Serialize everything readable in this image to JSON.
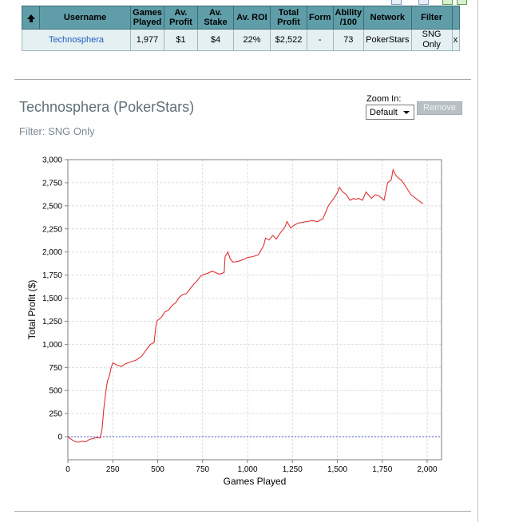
{
  "table": {
    "headers": [
      "",
      "Username",
      "Games Played",
      "Av. Profit",
      "Av. Stake",
      "Av. ROI",
      "Total Profit",
      "Form",
      "Ability /100",
      "Network",
      "Filter",
      ""
    ],
    "row": {
      "username": "Technosphera",
      "games_played": "1,977",
      "av_profit": "$1",
      "av_stake": "$4",
      "av_roi": "22%",
      "total_profit": "$2,522",
      "form": "-",
      "ability": "73",
      "network": "PokerStars",
      "filter": "SNG Only",
      "close": "x"
    }
  },
  "title": "Technosphera (PokerStars)",
  "filter_text": "Filter: SNG Only",
  "zoom": {
    "label": "Zoom In:",
    "selected": "Default"
  },
  "remove_label": "Remove",
  "colors": {
    "header_bg": "#5f9ea8",
    "row_bg": "#e4f0f2",
    "line": "#e03030",
    "zero_line": "#4a5ad0"
  },
  "chart_data": {
    "type": "line",
    "xlabel": "Games Played",
    "ylabel": "Total Profit ($)",
    "xlim": [
      0,
      2080
    ],
    "ylim": [
      -250,
      3000
    ],
    "xticks": [
      0,
      250,
      500,
      750,
      1000,
      1250,
      1500,
      1750,
      2000
    ],
    "yticks": [
      0,
      250,
      500,
      750,
      1000,
      1250,
      1500,
      1750,
      2000,
      2250,
      2500,
      2750,
      3000
    ],
    "xtick_labels": [
      "0",
      "250",
      "500",
      "750",
      "1,000",
      "1,250",
      "1,500",
      "1,750",
      "2,000"
    ],
    "ytick_labels": [
      "0",
      "250",
      "500",
      "750",
      "1,000",
      "1,250",
      "1,500",
      "1,750",
      "2,000",
      "2,250",
      "2,500",
      "2,750",
      "3,000"
    ],
    "grid": true,
    "reference_line": 0,
    "series": [
      {
        "x": [
          0,
          20,
          40,
          60,
          80,
          100,
          120,
          140,
          160,
          180,
          190,
          200,
          210,
          220,
          230,
          240,
          250,
          260,
          280,
          300,
          320,
          350,
          380,
          410,
          440,
          460,
          480,
          490,
          495,
          500,
          520,
          540,
          560,
          580,
          600,
          620,
          640,
          660,
          680,
          700,
          720,
          740,
          760,
          780,
          800,
          820,
          840,
          860,
          870,
          875,
          890,
          905,
          920,
          950,
          980,
          1000,
          1030,
          1060,
          1090,
          1100,
          1120,
          1140,
          1160,
          1180,
          1200,
          1210,
          1220,
          1240,
          1260,
          1280,
          1300,
          1330,
          1360,
          1390,
          1420,
          1450,
          1480,
          1500,
          1510,
          1530,
          1550,
          1570,
          1590,
          1600,
          1620,
          1640,
          1660,
          1690,
          1710,
          1730,
          1760,
          1780,
          1800,
          1810,
          1820,
          1830,
          1840,
          1855,
          1870,
          1890,
          1910,
          1930,
          1950,
          1977
        ],
        "y": [
          0,
          -30,
          -55,
          -60,
          -50,
          -55,
          -30,
          -20,
          -10,
          -15,
          80,
          300,
          470,
          600,
          650,
          740,
          800,
          790,
          770,
          760,
          790,
          810,
          830,
          870,
          950,
          1000,
          1020,
          1200,
          1250,
          1260,
          1290,
          1350,
          1370,
          1420,
          1450,
          1510,
          1540,
          1550,
          1600,
          1650,
          1690,
          1740,
          1760,
          1770,
          1790,
          1780,
          1760,
          1770,
          1780,
          1950,
          2000,
          1920,
          1890,
          1900,
          1920,
          1940,
          1950,
          1970,
          2070,
          2150,
          2130,
          2180,
          2140,
          2200,
          2250,
          2280,
          2330,
          2260,
          2290,
          2310,
          2320,
          2330,
          2340,
          2330,
          2360,
          2500,
          2580,
          2640,
          2700,
          2650,
          2620,
          2560,
          2580,
          2570,
          2580,
          2560,
          2650,
          2580,
          2620,
          2610,
          2560,
          2750,
          2780,
          2890,
          2850,
          2820,
          2800,
          2780,
          2740,
          2680,
          2620,
          2590,
          2560,
          2522
        ]
      }
    ]
  }
}
